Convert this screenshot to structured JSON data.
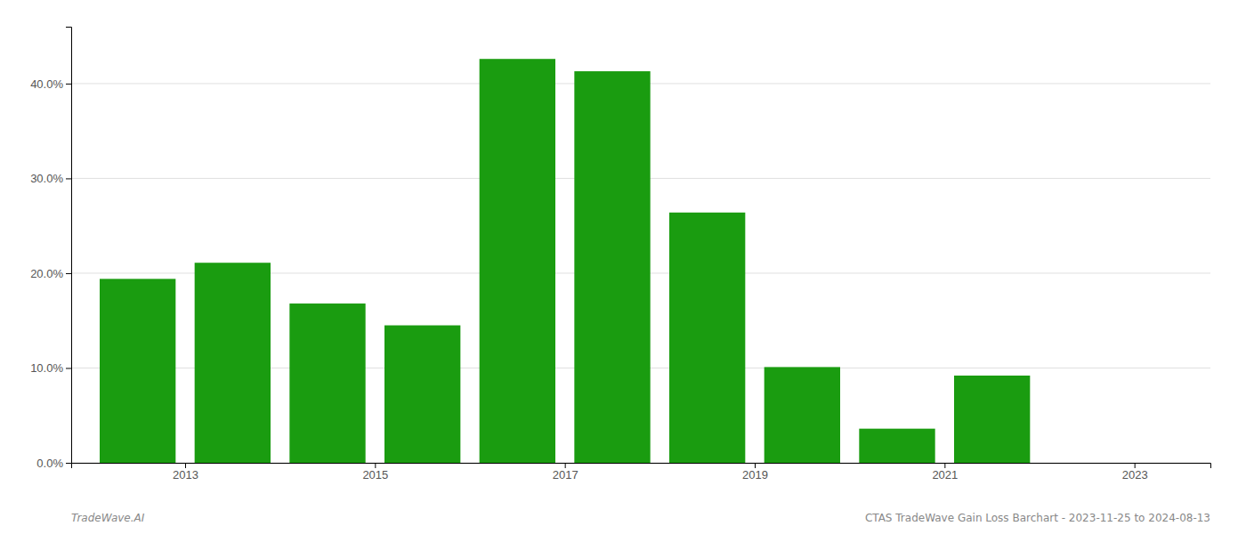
{
  "chart_data": {
    "type": "bar",
    "x": [
      2012.5,
      2013.5,
      2014.5,
      2015.5,
      2016.5,
      2017.5,
      2018.5,
      2019.5,
      2020.5,
      2021.5,
      2022.5
    ],
    "values": [
      0.194,
      0.211,
      0.168,
      0.145,
      0.426,
      0.413,
      0.264,
      0.101,
      0.036,
      0.092,
      0.0
    ],
    "color": "#1a9c10",
    "xlim": [
      2011.8,
      2023.8
    ],
    "xticks": [
      2013,
      2015,
      2017,
      2019,
      2021,
      2023
    ],
    "ylim": [
      0,
      0.46
    ],
    "yticks": [
      {
        "value": 0.0,
        "label": "0.0%"
      },
      {
        "value": 0.1,
        "label": "10.0%"
      },
      {
        "value": 0.2,
        "label": "20.0%"
      },
      {
        "value": 0.3,
        "label": "30.0%"
      },
      {
        "value": 0.4,
        "label": "40.0%"
      }
    ],
    "grid": true,
    "annotations": [
      "TradeWave.AI",
      "CTAS TradeWave Gain Loss Barchart - 2023-11-25 to 2024-08-13"
    ]
  }
}
